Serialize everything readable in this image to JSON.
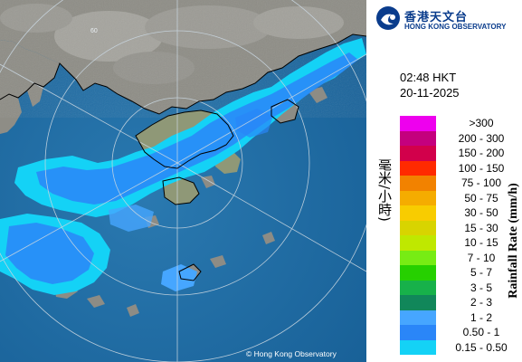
{
  "logo": {
    "name_cn": "香港天文台",
    "name_en": "HONG KONG OBSERVATORY"
  },
  "timestamp": {
    "time": "02:48 HKT",
    "date": "20-11-2025"
  },
  "legend": {
    "title_cn": "降雨率(毫米/小時)",
    "title_en": "Rainfall Rate (mm/h)",
    "classes": [
      {
        "label": ">300",
        "color": "#ee00ee"
      },
      {
        "label": "200 - 300",
        "color": "#c4007e"
      },
      {
        "label": "150 - 200",
        "color": "#d2004b"
      },
      {
        "label": "100 - 150",
        "color": "#ff2a00"
      },
      {
        "label": "75 - 100",
        "color": "#f28200"
      },
      {
        "label": "50 - 75",
        "color": "#f5ac00"
      },
      {
        "label": "30 - 50",
        "color": "#f8cc00"
      },
      {
        "label": "15 - 30",
        "color": "#d8d400"
      },
      {
        "label": "10 - 15",
        "color": "#bfe800"
      },
      {
        "label": "7 - 10",
        "color": "#77ec14"
      },
      {
        "label": "5 - 7",
        "color": "#26d000"
      },
      {
        "label": "3 - 5",
        "color": "#17b14a"
      },
      {
        "label": "2 - 3",
        "color": "#11875a"
      },
      {
        "label": "1 - 2",
        "color": "#46a6ff"
      },
      {
        "label": "0.50 - 1",
        "color": "#2a86f8"
      },
      {
        "label": "0.15 - 0.50",
        "color": "#14d2f6"
      }
    ]
  },
  "map": {
    "copyright": "© Hong Kong Observatory",
    "ring_label": "60",
    "sea_color": "#1f6fa8",
    "land_color": "#8d8c85"
  }
}
